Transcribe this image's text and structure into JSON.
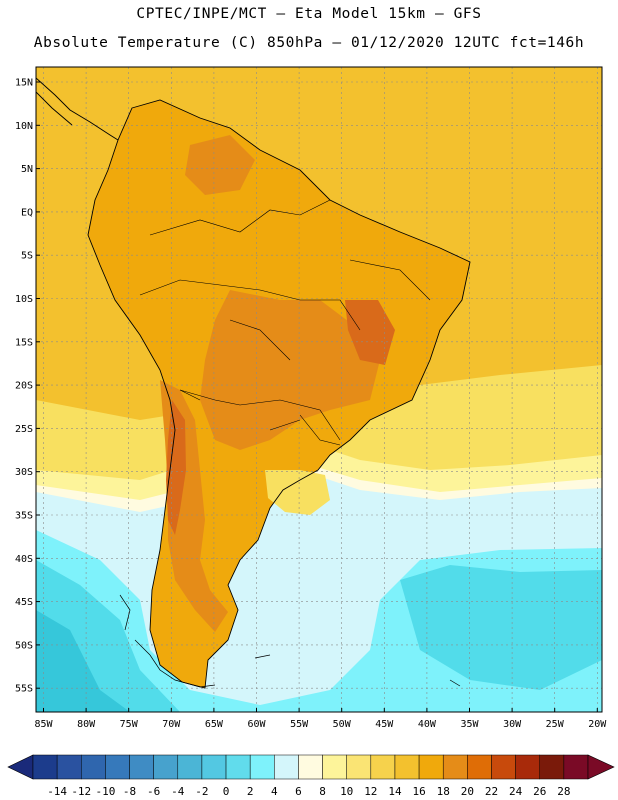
{
  "header": {
    "line1": "CPTEC/INPE/MCT —  Eta Model 15km — GFS",
    "line2": "Absolute Temperature (C) 850hPa — 01/12/2020 12UTC fct=146h"
  },
  "map": {
    "lat_labels": [
      "15N",
      "10N",
      "5N",
      "EQ",
      "5S",
      "10S",
      "15S",
      "20S",
      "25S",
      "30S",
      "35S",
      "40S",
      "45S",
      "50S",
      "55S"
    ],
    "lon_labels": [
      "85W",
      "80W",
      "75W",
      "70W",
      "65W",
      "60W",
      "55W",
      "50W",
      "45W",
      "40W",
      "35W",
      "30W",
      "25W",
      "20W"
    ],
    "fill_colors": {
      "ocean_warm": "#f3c12e",
      "land_warm": "#f0a90c",
      "land_hot": "#e58c18",
      "land_hottest": "#d96a1a",
      "mild": "#f8e060",
      "pale_yellow": "#fdf49a",
      "cream": "#fffbe0",
      "pale_cyan": "#d4f6fb",
      "cyan": "#7ef2fb",
      "cyan_deep": "#52dcea",
      "teal": "#36c7da"
    },
    "coastline_color": "#000000",
    "grid_color": "#8a8a8a"
  },
  "colorbar": {
    "tick_labels": [
      "-14",
      "-12",
      "-10",
      "-8",
      "-6",
      "-4",
      "-2",
      "0",
      "2",
      "4",
      "6",
      "8",
      "10",
      "12",
      "14",
      "16",
      "18",
      "20",
      "22",
      "24",
      "26",
      "28"
    ],
    "colors": [
      "#1c3c8c",
      "#2a52a0",
      "#2f66ae",
      "#3679bb",
      "#3f8cc4",
      "#47a2cd",
      "#4bb5d6",
      "#53c8e2",
      "#61dcec",
      "#7ef2fb",
      "#d4f6fb",
      "#fffbe0",
      "#fdf49a",
      "#fae474",
      "#f6d24c",
      "#f3c12e",
      "#f0a90c",
      "#e58c18",
      "#df6d06",
      "#c84a0c",
      "#a82a0a",
      "#7a1a0a",
      "#7a0a26"
    ],
    "low_arrow_color": "#1a2a7a",
    "high_arrow_color": "#7a0a26"
  }
}
